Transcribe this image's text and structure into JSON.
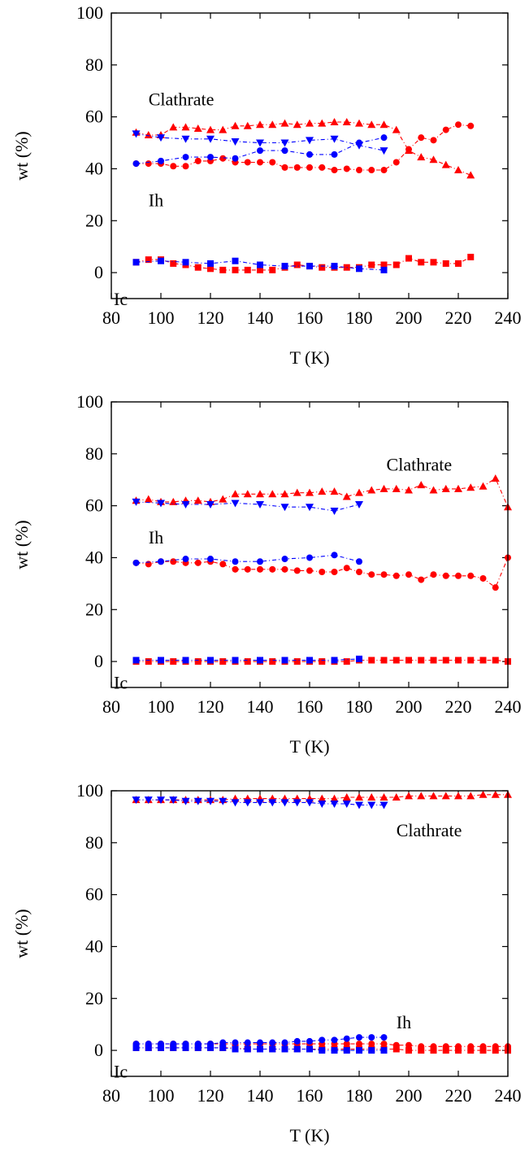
{
  "chart_data": [
    {
      "type": "line",
      "xlabel": "T (K)",
      "ylabel": "wt (%)",
      "xlim": [
        80,
        240
      ],
      "ylim": [
        -10,
        100
      ],
      "xticks": [
        80,
        100,
        120,
        140,
        160,
        180,
        200,
        220,
        240
      ],
      "yticks": [
        0,
        20,
        40,
        60,
        80,
        100
      ],
      "annotations": [
        {
          "text": "Clathrate",
          "x": 95,
          "y": 67
        },
        {
          "text": "Ih",
          "x": 95,
          "y": 28
        },
        {
          "text": "Ic",
          "x": 81,
          "y": -10
        }
      ],
      "series": [
        {
          "color": "#ff0000",
          "marker": "triangle-up",
          "x": [
            90,
            95,
            100,
            105,
            110,
            115,
            120,
            125,
            130,
            135,
            140,
            145,
            150,
            155,
            160,
            165,
            170,
            175,
            180,
            185,
            190,
            195,
            200,
            205,
            210,
            215,
            220,
            225
          ],
          "y": [
            54,
            53,
            53,
            56,
            56,
            55.5,
            55,
            55,
            56.5,
            56.5,
            57,
            57,
            57.5,
            57,
            57.5,
            57.5,
            58,
            58,
            57.5,
            57,
            57,
            55,
            47,
            44.5,
            43.5,
            41.5,
            39.5,
            37.5
          ]
        },
        {
          "color": "#ff0000",
          "marker": "circle",
          "x": [
            90,
            95,
            100,
            105,
            110,
            115,
            120,
            125,
            130,
            135,
            140,
            145,
            150,
            155,
            160,
            165,
            170,
            175,
            180,
            185,
            190,
            195,
            200,
            205,
            210,
            215,
            220,
            225
          ],
          "y": [
            42,
            42,
            42,
            41,
            41,
            43,
            43,
            44,
            42.5,
            42.5,
            42.5,
            42.5,
            40.5,
            40.5,
            40.5,
            40.5,
            39.5,
            40,
            39.5,
            39.5,
            39.5,
            42.5,
            47.5,
            52,
            51,
            55,
            57,
            56.5
          ]
        },
        {
          "color": "#ff0000",
          "marker": "square",
          "x": [
            90,
            95,
            100,
            105,
            110,
            115,
            120,
            125,
            130,
            135,
            140,
            145,
            150,
            155,
            160,
            165,
            170,
            175,
            180,
            185,
            190,
            195,
            200,
            205,
            210,
            215,
            220,
            225
          ],
          "y": [
            4,
            5,
            5,
            3.5,
            3,
            2,
            1.5,
            1,
            1,
            1,
            1,
            1,
            2,
            3,
            2.5,
            2,
            2,
            2,
            2,
            3,
            3,
            3,
            5.5,
            4,
            4,
            3.5,
            3.5,
            6
          ]
        },
        {
          "color": "#0000ff",
          "marker": "triangle-down",
          "x": [
            90,
            100,
            110,
            120,
            130,
            140,
            150,
            160,
            170,
            180,
            190
          ],
          "y": [
            53.5,
            52,
            51.5,
            51.5,
            50.5,
            50,
            50,
            51,
            51.5,
            49,
            47
          ]
        },
        {
          "color": "#0000ff",
          "marker": "circle",
          "x": [
            90,
            100,
            110,
            120,
            130,
            140,
            150,
            160,
            170,
            180,
            190
          ],
          "y": [
            42,
            43,
            44.5,
            44.5,
            44,
            47,
            47,
            45.5,
            45.5,
            50,
            52
          ]
        },
        {
          "color": "#0000ff",
          "marker": "square",
          "x": [
            90,
            100,
            110,
            120,
            130,
            140,
            150,
            160,
            170,
            180,
            190
          ],
          "y": [
            4,
            4.5,
            4,
            3.5,
            4.5,
            3,
            2.5,
            2.5,
            2.5,
            1.5,
            1
          ]
        }
      ]
    },
    {
      "type": "line",
      "xlabel": "T (K)",
      "ylabel": "wt (%)",
      "xlim": [
        80,
        240
      ],
      "ylim": [
        -10,
        100
      ],
      "xticks": [
        80,
        100,
        120,
        140,
        160,
        180,
        200,
        220,
        240
      ],
      "yticks": [
        0,
        20,
        40,
        60,
        80,
        100
      ],
      "annotations": [
        {
          "text": "Clathrate",
          "x": 191,
          "y": 76
        },
        {
          "text": "Ih",
          "x": 95,
          "y": 48
        },
        {
          "text": "Ic",
          "x": 81,
          "y": -8
        }
      ],
      "series": [
        {
          "color": "#ff0000",
          "marker": "triangle-up",
          "x": [
            90,
            95,
            100,
            105,
            110,
            115,
            120,
            125,
            130,
            135,
            140,
            145,
            150,
            155,
            160,
            165,
            170,
            175,
            180,
            185,
            190,
            195,
            200,
            205,
            210,
            215,
            220,
            225,
            230,
            235,
            240
          ],
          "y": [
            62,
            62.5,
            61.5,
            61.5,
            62,
            62,
            61.5,
            62.5,
            64.5,
            64.5,
            64.5,
            64.5,
            64.5,
            65,
            65,
            65.5,
            65.5,
            63.5,
            65,
            66,
            66.5,
            66.5,
            66,
            68,
            66,
            66.5,
            66.5,
            67,
            67.5,
            70.5,
            59.5
          ]
        },
        {
          "color": "#ff0000",
          "marker": "circle",
          "x": [
            90,
            95,
            100,
            105,
            110,
            115,
            120,
            125,
            130,
            135,
            140,
            145,
            150,
            155,
            160,
            165,
            170,
            175,
            180,
            185,
            190,
            195,
            200,
            205,
            210,
            215,
            220,
            225,
            230,
            235,
            240
          ],
          "y": [
            38,
            37.5,
            38.5,
            38.5,
            38,
            38,
            38.5,
            37.5,
            35.5,
            35.5,
            35.5,
            35.5,
            35.5,
            35,
            35,
            34.5,
            34.5,
            36,
            34.5,
            33.5,
            33.5,
            33,
            33.5,
            31.5,
            33.5,
            33,
            33,
            33,
            32,
            28.5,
            40
          ]
        },
        {
          "color": "#ff0000",
          "marker": "square",
          "x": [
            90,
            95,
            100,
            105,
            110,
            115,
            120,
            125,
            130,
            135,
            140,
            145,
            150,
            155,
            160,
            165,
            170,
            175,
            180,
            185,
            190,
            195,
            200,
            205,
            210,
            215,
            220,
            225,
            230,
            235,
            240
          ],
          "y": [
            0,
            0,
            0,
            0,
            0,
            0,
            0,
            0,
            0,
            0,
            0,
            0,
            0,
            0,
            0,
            0,
            0,
            0,
            0.5,
            0.5,
            0.5,
            0.5,
            0.5,
            0.5,
            0.5,
            0.5,
            0.5,
            0.5,
            0.5,
            0.5,
            0
          ]
        },
        {
          "color": "#0000ff",
          "marker": "triangle-down",
          "x": [
            90,
            100,
            110,
            120,
            130,
            140,
            150,
            160,
            170,
            180
          ],
          "y": [
            61.5,
            61,
            60.5,
            60.5,
            61,
            60.5,
            59.5,
            59.5,
            58,
            60.5
          ]
        },
        {
          "color": "#0000ff",
          "marker": "circle",
          "x": [
            90,
            100,
            110,
            120,
            130,
            140,
            150,
            160,
            170,
            180
          ],
          "y": [
            38,
            38.5,
            39.5,
            39.5,
            38.5,
            38.5,
            39.5,
            40,
            41,
            38.5
          ]
        },
        {
          "color": "#0000ff",
          "marker": "square",
          "x": [
            90,
            100,
            110,
            120,
            130,
            140,
            150,
            160,
            170,
            180
          ],
          "y": [
            0.5,
            0.5,
            0.5,
            0.5,
            0.5,
            0.5,
            0.5,
            0.5,
            0.5,
            1
          ]
        }
      ]
    },
    {
      "type": "line",
      "xlabel": "T (K)",
      "ylabel": "wt (%)",
      "xlim": [
        80,
        240
      ],
      "ylim": [
        -10,
        100
      ],
      "xticks": [
        80,
        100,
        120,
        140,
        160,
        180,
        200,
        220,
        240
      ],
      "yticks": [
        0,
        20,
        40,
        60,
        80,
        100
      ],
      "annotations": [
        {
          "text": "Clathrate",
          "x": 195,
          "y": 85
        },
        {
          "text": "Ih",
          "x": 195,
          "y": 11
        },
        {
          "text": "Ic",
          "x": 81,
          "y": -8
        }
      ],
      "series": [
        {
          "color": "#ff0000",
          "marker": "triangle-up",
          "x": [
            90,
            95,
            100,
            105,
            110,
            115,
            120,
            125,
            130,
            135,
            140,
            145,
            150,
            155,
            160,
            165,
            170,
            175,
            180,
            185,
            190,
            195,
            200,
            205,
            210,
            215,
            220,
            225,
            230,
            235,
            240
          ],
          "y": [
            96.5,
            96.5,
            96.5,
            96.5,
            96.5,
            96.5,
            96.5,
            96.5,
            97,
            97,
            97,
            97,
            97,
            97,
            97,
            97,
            97,
            97.5,
            97.5,
            97.5,
            97.5,
            97.5,
            98,
            98,
            98,
            98,
            98,
            98,
            98.5,
            98.5,
            98.5
          ]
        },
        {
          "color": "#ff0000",
          "marker": "circle",
          "x": [
            90,
            95,
            100,
            105,
            110,
            115,
            120,
            125,
            130,
            135,
            140,
            145,
            150,
            155,
            160,
            165,
            170,
            175,
            180,
            185,
            190,
            195,
            200,
            205,
            210,
            215,
            220,
            225,
            230,
            235,
            240
          ],
          "y": [
            2.5,
            2.5,
            2.5,
            2.5,
            2.5,
            2.5,
            2.5,
            2.5,
            2.5,
            2.5,
            2.5,
            2.5,
            2.5,
            2.5,
            2.5,
            2.5,
            2.5,
            2.5,
            2.5,
            2.5,
            2.5,
            2,
            2,
            1.5,
            1.5,
            1.5,
            1.5,
            1.5,
            1.5,
            1.5,
            1.5
          ]
        },
        {
          "color": "#ff0000",
          "marker": "square",
          "x": [
            90,
            95,
            100,
            105,
            110,
            115,
            120,
            125,
            130,
            135,
            140,
            145,
            150,
            155,
            160,
            165,
            170,
            175,
            180,
            185,
            190,
            195,
            200,
            205,
            210,
            215,
            220,
            225,
            230,
            235,
            240
          ],
          "y": [
            1,
            1,
            1,
            1,
            1,
            1,
            1,
            1,
            1,
            0.5,
            0.5,
            0.5,
            0.5,
            0.5,
            0.5,
            0.5,
            0.5,
            0.5,
            0.5,
            0.5,
            0.5,
            0.5,
            0,
            0,
            0,
            0,
            0,
            0,
            0,
            0,
            0
          ]
        },
        {
          "color": "#0000ff",
          "marker": "triangle-down",
          "x": [
            90,
            95,
            100,
            105,
            110,
            115,
            120,
            125,
            130,
            135,
            140,
            145,
            150,
            155,
            160,
            165,
            170,
            175,
            180,
            185,
            190
          ],
          "y": [
            96.5,
            96.5,
            96.5,
            96.5,
            96,
            96,
            96,
            96,
            95.5,
            95.5,
            95.5,
            95.5,
            95.5,
            95.5,
            95.5,
            95,
            95,
            95,
            94.5,
            94.5,
            94.5
          ]
        },
        {
          "color": "#0000ff",
          "marker": "circle",
          "x": [
            90,
            95,
            100,
            105,
            110,
            115,
            120,
            125,
            130,
            135,
            140,
            145,
            150,
            155,
            160,
            165,
            170,
            175,
            180,
            185,
            190
          ],
          "y": [
            2.5,
            2.5,
            2.5,
            2.5,
            2.5,
            2.5,
            2.5,
            3,
            3,
            3,
            3,
            3,
            3,
            3.5,
            3.5,
            4,
            4,
            4.5,
            5,
            5,
            5
          ]
        },
        {
          "color": "#0000ff",
          "marker": "square",
          "x": [
            90,
            95,
            100,
            105,
            110,
            115,
            120,
            125,
            130,
            135,
            140,
            145,
            150,
            155,
            160,
            165,
            170,
            175,
            180,
            185,
            190
          ],
          "y": [
            1,
            1,
            1,
            1,
            1,
            1,
            1,
            1,
            0.5,
            0.5,
            0.5,
            0.5,
            0.5,
            0.5,
            0.5,
            0,
            0,
            0,
            0,
            0,
            0
          ]
        }
      ]
    }
  ]
}
